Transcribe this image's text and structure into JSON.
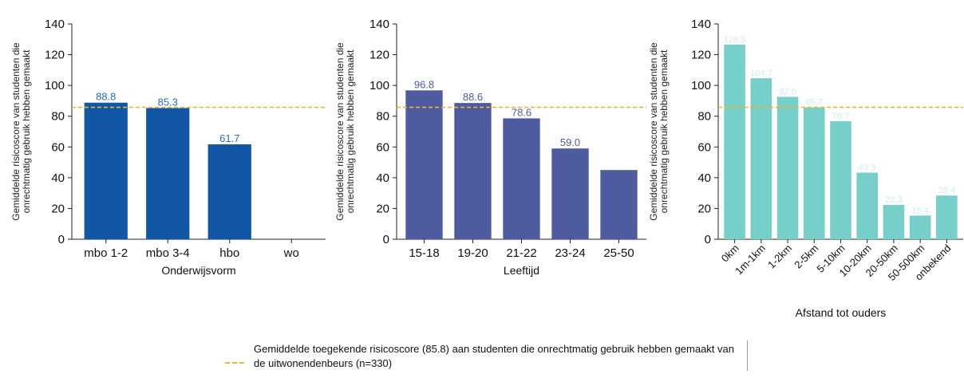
{
  "chart_data": [
    {
      "type": "bar",
      "title": "",
      "xlabel": "Onderwijsvorm",
      "ylabel": "Gemiddelde risicoscore van studenten die onrechtmatig gebruik hebben gemaakt",
      "ylim": [
        0,
        140
      ],
      "yticks": [
        "0",
        "20",
        "40",
        "60",
        "80",
        "100",
        "120",
        "140"
      ],
      "categories": [
        "mbo 1-2",
        "mbo 3-4",
        "hbo",
        "wo"
      ],
      "values": [
        88.8,
        85.3,
        61.7,
        null
      ],
      "value_labels": [
        "88.8",
        "85.3",
        "61.7",
        ""
      ],
      "bar_color": "#1157a6",
      "label_color": "#1f6fc0",
      "reference_line": 85.8,
      "rotate_ticks": false
    },
    {
      "type": "bar",
      "title": "",
      "xlabel": "Leeftijd",
      "ylabel": "Gemiddelde risicoscore van studenten die onrechtmatig gebruik hebben gemaakt",
      "ylim": [
        0,
        140
      ],
      "yticks": [
        "0",
        "20",
        "40",
        "60",
        "80",
        "100",
        "120",
        "140"
      ],
      "categories": [
        "15-18",
        "19-20",
        "21-22",
        "23-24",
        "25-50"
      ],
      "values": [
        96.8,
        88.6,
        78.6,
        59.0,
        45.0
      ],
      "value_labels": [
        "96.8",
        "88.6",
        "78.6",
        "59.0",
        ""
      ],
      "bar_color": "#4e5b9e",
      "label_color": "#4e5b9e",
      "reference_line": 85.8,
      "rotate_ticks": false
    },
    {
      "type": "bar",
      "title": "",
      "xlabel": "Afstand tot ouders",
      "ylabel": "Gemiddelde risicoscore van studenten die onrechtmatig gebruik hebben gemaakt",
      "ylim": [
        0,
        140
      ],
      "yticks": [
        "0",
        "20",
        "40",
        "60",
        "80",
        "100",
        "120",
        "140"
      ],
      "categories": [
        "0km",
        "1m-1km",
        "1-2km",
        "2-5km",
        "5-10km",
        "10-20km",
        "20-50km",
        "50-500km",
        "onbekend"
      ],
      "values": [
        126.5,
        104.7,
        92.6,
        85.7,
        76.7,
        43.3,
        22.3,
        15.4,
        28.4
      ],
      "value_labels": [
        "126.5",
        "104.7",
        "92.6",
        "85.7",
        "76.7",
        "43.3",
        "22.3",
        "15.4",
        "28.4"
      ],
      "bar_color": "#76cfc9",
      "label_color": "#c9efec",
      "reference_line": 85.8,
      "rotate_ticks": true
    }
  ],
  "legend": {
    "text": "Gemiddelde toegekende risicoscore (85.8) aan studenten die onrechtmatig gebruik hebben gemaakt van de uitwonendenbeurs (n=330)",
    "line_color": "#f0b43c"
  }
}
